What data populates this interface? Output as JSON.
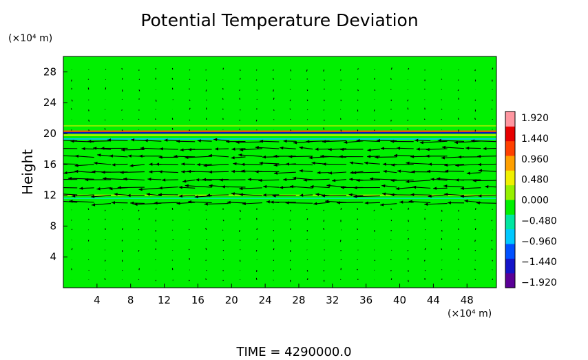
{
  "chart_data": {
    "type": "heatmap",
    "title": "Potential Temperature Deviation",
    "ylabel": "Height",
    "y_units": "(×10⁴ m)",
    "x_units": "(×10⁴ m)",
    "xlim": [
      0,
      51.5
    ],
    "ylim": [
      0,
      30
    ],
    "x_ticks": [
      "4",
      "8",
      "12",
      "16",
      "20",
      "24",
      "28",
      "32",
      "36",
      "40",
      "44",
      "48"
    ],
    "y_ticks": [
      "4",
      "8",
      "12",
      "16",
      "20",
      "24",
      "28"
    ],
    "x_tick_values": [
      4,
      8,
      12,
      16,
      20,
      24,
      28,
      32,
      36,
      40,
      44,
      48
    ],
    "y_tick_values": [
      4,
      8,
      12,
      16,
      20,
      24,
      28
    ],
    "colorbar": {
      "labels": [
        "1.920",
        "1.440",
        "0.960",
        "0.480",
        "0.000",
        "−0.480",
        "−0.960",
        "−1.440",
        "−1.920"
      ],
      "values": [
        1.92,
        1.44,
        0.96,
        0.48,
        0.0,
        -0.48,
        -0.96,
        -1.44,
        -1.92
      ],
      "colors": [
        "#5a0096",
        "#1414c8",
        "#0050ff",
        "#00c8ff",
        "#00e6a0",
        "#00f000",
        "#96f000",
        "#f0f000",
        "#ffa000",
        "#ff4000",
        "#e60000",
        "#ff96a0"
      ]
    },
    "background_value": 0.0,
    "background_color": "#00f000",
    "bands": [
      {
        "y": 20.1,
        "value": -1.6,
        "color": "#1010c0"
      },
      {
        "y": 20.3,
        "value": 1.5,
        "color": "#ff5000"
      },
      {
        "y": 19.8,
        "value": 0.7,
        "color": "#f0f000"
      },
      {
        "y": 21.0,
        "value": 0.4,
        "color": "#96f000"
      },
      {
        "y": 19.3,
        "value": -0.6,
        "color": "#00c8ff"
      },
      {
        "y": 12.0,
        "value": 0.3,
        "color": "#b4f000"
      },
      {
        "y": 11.6,
        "value": -0.3,
        "color": "#00e6a0"
      }
    ],
    "vector_field": {
      "description": "wind vectors, strongest (westward) between heights 11 and 20",
      "strong_rows": [
        19.0,
        18.0,
        17.0,
        16.0,
        15.0,
        14.0,
        13.0,
        12.0,
        11.0
      ],
      "x_spacing": 2.0
    },
    "time_label": "TIME  =  4290000.0"
  }
}
